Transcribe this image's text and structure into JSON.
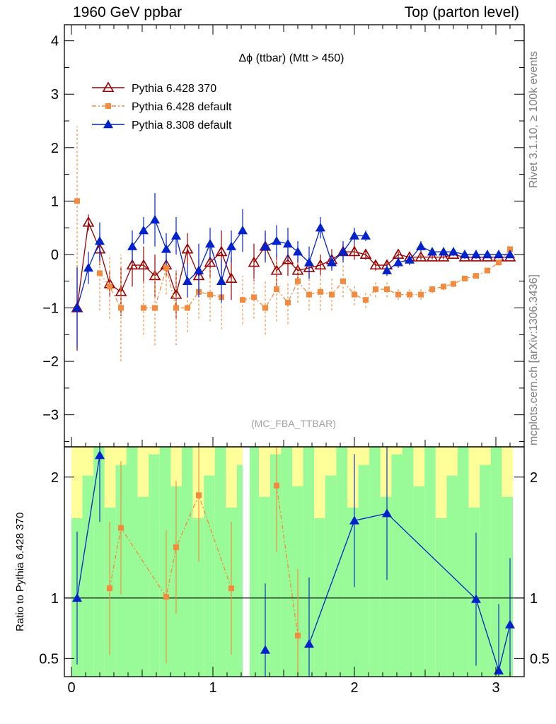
{
  "header": {
    "left": "1960 GeV ppbar",
    "right": "Top (parton level)"
  },
  "side_labels": {
    "rivet": "Rivet 3.1.10, ≥ 100k events",
    "mcplots": "mcplots.cern.ch [arXiv:1306.3436]"
  },
  "colors": {
    "pythia6_370": "#990000",
    "pythia6_default": "#f58a3c",
    "pythia8": "#0022cc",
    "band_green": "#98fb98",
    "band_yellow": "#ffff99"
  },
  "chart_data": [
    {
      "type": "line",
      "title": "Δϕ (ttbar) (Mtt > 450)",
      "watermark": "(MC_FBA_TTBAR)",
      "xlabel": "",
      "ylabel": "",
      "xlim": [
        -0.05,
        3.2
      ],
      "ylim": [
        -3.6,
        4.3
      ],
      "yticks": [
        -3,
        -2,
        -1,
        0,
        1,
        2,
        3,
        4
      ],
      "xticks": [
        0,
        1,
        2,
        3
      ],
      "legend_position": "top-left",
      "x": [
        0.04,
        0.12,
        0.2,
        0.27,
        0.35,
        0.43,
        0.51,
        0.59,
        0.67,
        0.74,
        0.82,
        0.9,
        0.98,
        1.06,
        1.13,
        1.21,
        1.29,
        1.37,
        1.45,
        1.53,
        1.6,
        1.68,
        1.76,
        1.84,
        1.92,
        2.0,
        2.08,
        2.15,
        2.23,
        2.31,
        2.39,
        2.47,
        2.55,
        2.63,
        2.7,
        2.78,
        2.86,
        2.94,
        3.02,
        3.1
      ],
      "series": [
        {
          "name": "Pythia 6.428 370",
          "marker": "open-triangle",
          "color": "#990000",
          "values": [
            -1.0,
            0.6,
            0.1,
            -0.55,
            -0.7,
            -0.2,
            -0.2,
            -0.4,
            -0.2,
            -0.75,
            0.1,
            -0.4,
            -0.15,
            0.05,
            -0.45,
            null,
            -0.15,
            0.15,
            -0.3,
            -0.1,
            -0.3,
            -0.25,
            -0.2,
            -0.1,
            0.05,
            0.05,
            0.0,
            -0.2,
            -0.2,
            0.0,
            -0.05,
            -0.05,
            -0.05,
            -0.05,
            0.0,
            -0.05,
            -0.05,
            -0.05,
            -0.05,
            -0.05
          ],
          "errors": [
            0.8,
            0.15,
            0.3,
            0.25,
            0.45,
            0.4,
            0.35,
            0.4,
            0.2,
            0.45,
            0.3,
            0.3,
            0.3,
            0.4,
            0.4,
            null,
            0.35,
            0.25,
            0.3,
            0.3,
            0.25,
            0.2,
            0.2,
            0.2,
            0.15,
            0.15,
            0.1,
            0.1,
            0.1,
            0.05,
            0.05,
            0.05,
            0.04,
            0.04,
            0.03,
            0.03,
            0.03,
            0.02,
            0.02,
            0.02
          ]
        },
        {
          "name": "Pythia 6.428 default",
          "marker": "square",
          "color": "#f58a3c",
          "values": [
            1.0,
            null,
            -0.35,
            -0.6,
            -1.0,
            null,
            -1.0,
            -1.0,
            -0.25,
            -1.0,
            -1.0,
            -0.7,
            -0.75,
            -0.8,
            null,
            -0.85,
            -0.8,
            -1.0,
            -0.65,
            -0.9,
            -0.5,
            -0.75,
            -0.7,
            -0.75,
            -0.5,
            -0.75,
            -0.85,
            -0.65,
            -0.65,
            -0.75,
            -0.75,
            -0.75,
            -0.65,
            -0.6,
            -0.55,
            -0.45,
            -0.4,
            -0.3,
            -0.15,
            0.1
          ],
          "errors": [
            1.4,
            null,
            0.7,
            0.6,
            1.0,
            null,
            0.5,
            0.7,
            0.5,
            0.7,
            0.45,
            0.5,
            0.5,
            0.6,
            null,
            0.45,
            0.4,
            0.5,
            0.6,
            0.4,
            0.4,
            0.3,
            0.35,
            0.3,
            0.3,
            0.2,
            0.15,
            0.15,
            0.15,
            0.1,
            0.1,
            0.1,
            0.08,
            0.07,
            0.06,
            0.05,
            0.05,
            0.05,
            0.05,
            0.05
          ]
        },
        {
          "name": "Pythia 8.308 default",
          "marker": "filled-triangle",
          "color": "#0022cc",
          "values": [
            -1.0,
            -0.25,
            0.25,
            null,
            null,
            0.15,
            0.45,
            0.65,
            0.1,
            0.35,
            -0.5,
            -0.3,
            0.2,
            -0.5,
            0.15,
            0.45,
            null,
            0.15,
            0.25,
            0.2,
            0.05,
            -0.15,
            0.5,
            -0.15,
            0.05,
            0.35,
            0.35,
            null,
            -0.3,
            -0.15,
            -0.1,
            0.15,
            0.05,
            0.05,
            0.05,
            0.0,
            0.0,
            0.0,
            0.0,
            0.0
          ],
          "errors": [
            0.75,
            0.3,
            0.35,
            null,
            null,
            0.3,
            0.25,
            0.5,
            0.3,
            0.35,
            0.3,
            0.5,
            0.3,
            0.4,
            0.3,
            0.4,
            null,
            0.3,
            0.3,
            0.3,
            0.2,
            0.3,
            0.2,
            0.15,
            0.2,
            0.15,
            0.1,
            null,
            0.1,
            0.1,
            0.1,
            0.1,
            0.05,
            0.05,
            0.05,
            0.04,
            0.04,
            0.03,
            0.03,
            0.03
          ]
        }
      ]
    },
    {
      "type": "line",
      "title": "",
      "xlabel": "",
      "ylabel": "Ratio to Pythia 6.428 370",
      "xlim": [
        -0.05,
        3.2
      ],
      "ylim": [
        0.35,
        2.25
      ],
      "yticks": [
        0.5,
        1,
        2
      ],
      "xticks": [
        0,
        1,
        2,
        3
      ],
      "reference_line": 1,
      "x": [
        0.04,
        0.2,
        0.27,
        0.35,
        0.67,
        0.74,
        0.9,
        1.13,
        1.37,
        1.45,
        1.6,
        1.68,
        2.0,
        2.23,
        2.86,
        3.02,
        3.1
      ],
      "series": [
        {
          "name": "Pythia 6.428 default",
          "color": "#f58a3c",
          "values": [
            null,
            null,
            1.08,
            1.58,
            1.01,
            1.42,
            1.85,
            1.08,
            null,
            1.93,
            0.69,
            null,
            null,
            null,
            null,
            null,
            null
          ]
        },
        {
          "name": "Pythia 8.308 default",
          "color": "#0022cc",
          "values": [
            1.0,
            2.18,
            null,
            null,
            null,
            null,
            null,
            null,
            0.57,
            null,
            null,
            0.62,
            1.64,
            1.7,
            0.99,
            0.4,
            0.78
          ]
        }
      ]
    }
  ]
}
